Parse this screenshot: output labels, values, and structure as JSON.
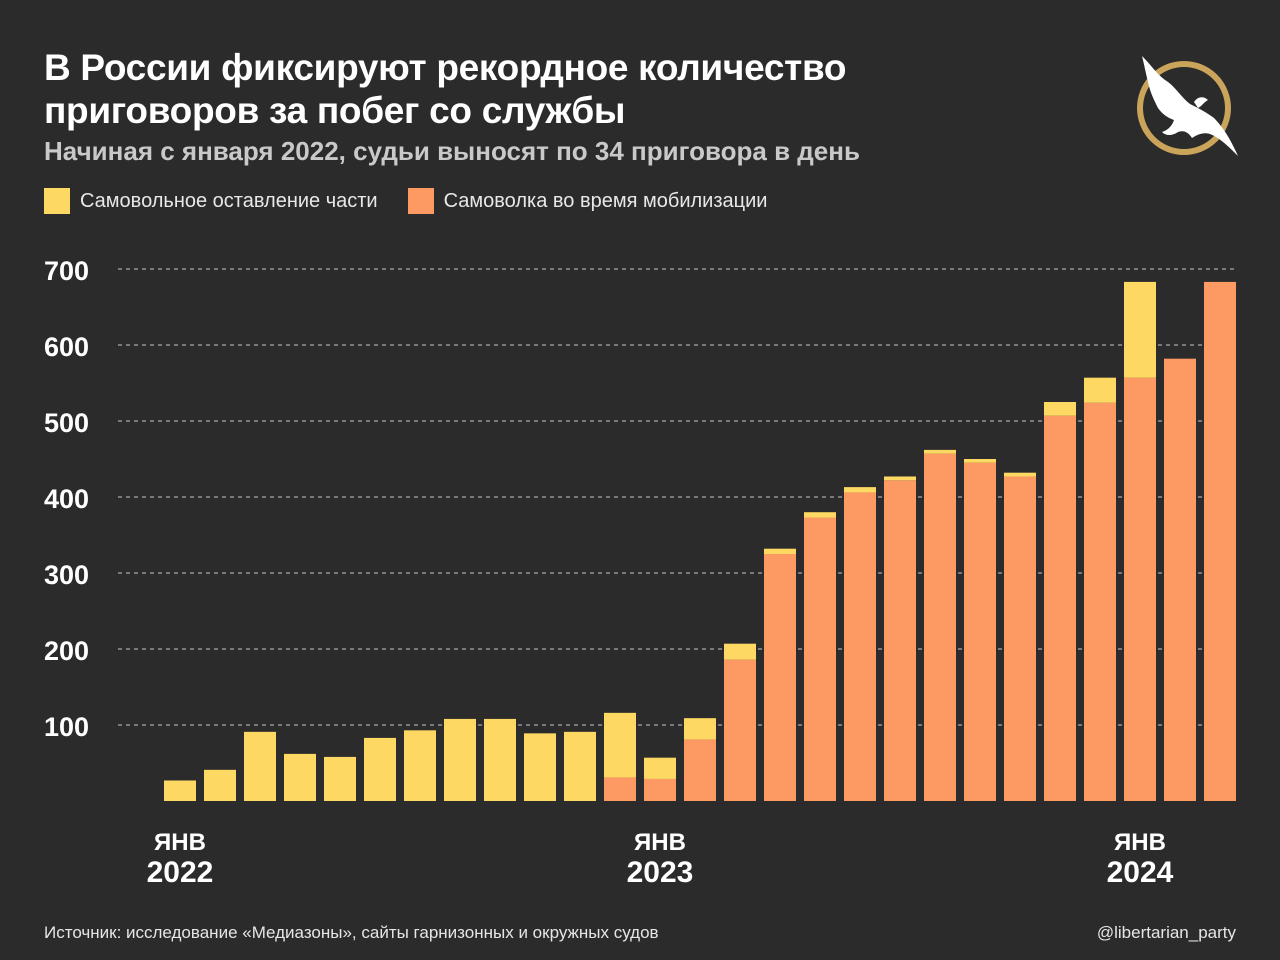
{
  "header": {
    "title_line1": "В России фиксируют рекордное количество",
    "title_line2": "приговоров за побег со службы",
    "subtitle": "Начиная с января 2022, судьи выносят по 34 приговора в день"
  },
  "logo": {
    "icon": "eagle-icon",
    "ring_color": "#c9a45a"
  },
  "colors": {
    "yellow": "#fdd862",
    "orange": "#fd9a63",
    "background": "#2b2b2b",
    "grid": "#ffffff"
  },
  "chart_data": {
    "type": "bar",
    "stacked": true,
    "title": "В России фиксируют рекордное количество приговоров за побег со службы",
    "subtitle": "Начиная с января 2022, судьи выносят по 34 приговора в день",
    "legend_placement": "top-left",
    "grid": "horizontal dashed",
    "ylim": [
      0,
      700
    ],
    "yticks": [
      100,
      200,
      300,
      400,
      500,
      600,
      700
    ],
    "x_labels": [
      {
        "index": 0,
        "month": "ЯНВ",
        "year": "2022"
      },
      {
        "index": 12,
        "month": "ЯНВ",
        "year": "2023"
      },
      {
        "index": 24,
        "month": "ЯНВ",
        "year": "2024"
      }
    ],
    "series": [
      {
        "name": "Самоволка во время мобилизации",
        "color": "#fd9a63",
        "values": [
          0,
          0,
          0,
          0,
          0,
          0,
          0,
          0,
          0,
          0,
          0,
          31,
          29,
          81,
          186,
          325,
          373,
          406,
          422,
          457,
          445,
          427,
          507,
          524,
          557,
          582,
          683
        ]
      },
      {
        "name": "Самовольное оставление части",
        "color": "#fdd862",
        "values": [
          27,
          41,
          91,
          62,
          58,
          83,
          93,
          108,
          108,
          89,
          91,
          85,
          28,
          28,
          21,
          7,
          7,
          7,
          5,
          5,
          5,
          5,
          18,
          33,
          126,
          0,
          0
        ]
      }
    ],
    "legend": [
      {
        "name": "Самовольное оставление части",
        "color": "#fdd862"
      },
      {
        "name": "Самоволка во время мобилизации",
        "color": "#fd9a63"
      }
    ]
  },
  "footer": {
    "source": "Источник: исследование «Медиазоны», сайты гарнизонных и окружных судов",
    "handle": "@libertarian_party"
  }
}
